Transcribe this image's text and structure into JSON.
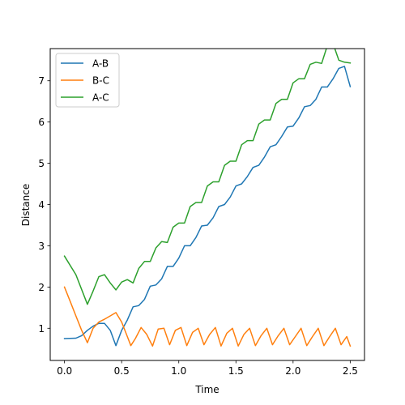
{
  "chart_data": {
    "type": "line",
    "title": "",
    "xlabel": "Time",
    "ylabel": "Distance",
    "xlim": [
      -0.125,
      2.625
    ],
    "ylim": [
      0.22,
      7.78
    ],
    "xticks": [
      0.0,
      0.5,
      1.0,
      1.5,
      2.0,
      2.5
    ],
    "xtick_labels": [
      "0.0",
      "0.5",
      "1.0",
      "1.5",
      "2.0",
      "2.5"
    ],
    "yticks": [
      1,
      2,
      3,
      4,
      5,
      6,
      7
    ],
    "ytick_labels": [
      "1",
      "2",
      "3",
      "4",
      "5",
      "6",
      "7"
    ],
    "grid": false,
    "legend": {
      "placement": "top-left",
      "entries": [
        "A-B",
        "B-C",
        "A-C"
      ]
    },
    "series": [
      {
        "name": "A-B",
        "color": "#1f77b4",
        "x": [
          0.0,
          0.1,
          0.15,
          0.2,
          0.25,
          0.3,
          0.35,
          0.4,
          0.45,
          0.5,
          0.55,
          0.6,
          0.65,
          0.7,
          0.75,
          0.8,
          0.85,
          0.9,
          0.95,
          1.0,
          1.05,
          1.1,
          1.15,
          1.2,
          1.25,
          1.3,
          1.35,
          1.4,
          1.45,
          1.5,
          1.55,
          1.6,
          1.65,
          1.7,
          1.75,
          1.8,
          1.85,
          1.9,
          1.95,
          2.0,
          2.05,
          2.1,
          2.15,
          2.2,
          2.25,
          2.3,
          2.35,
          2.4,
          2.45,
          2.5
        ],
        "y": [
          0.75,
          0.76,
          0.82,
          0.95,
          1.05,
          1.12,
          1.12,
          0.95,
          0.58,
          0.95,
          1.2,
          1.52,
          1.55,
          1.7,
          2.02,
          2.05,
          2.2,
          2.5,
          2.5,
          2.7,
          3.0,
          3.0,
          3.2,
          3.48,
          3.5,
          3.68,
          3.95,
          4.0,
          4.18,
          4.45,
          4.5,
          4.68,
          4.9,
          4.95,
          5.15,
          5.4,
          5.45,
          5.65,
          5.88,
          5.9,
          6.1,
          6.37,
          6.4,
          6.55,
          6.85,
          6.85,
          7.05,
          7.3,
          7.35,
          6.86
        ]
      },
      {
        "name": "B-C",
        "color": "#ff7f0e",
        "x": [
          0.0,
          0.05,
          0.1,
          0.15,
          0.2,
          0.25,
          0.3,
          0.35,
          0.4,
          0.45,
          0.5,
          0.55,
          0.58,
          0.62,
          0.67,
          0.72,
          0.77,
          0.82,
          0.87,
          0.92,
          0.97,
          1.02,
          1.07,
          1.12,
          1.17,
          1.22,
          1.27,
          1.32,
          1.37,
          1.42,
          1.47,
          1.52,
          1.57,
          1.62,
          1.67,
          1.72,
          1.77,
          1.82,
          1.87,
          1.92,
          1.97,
          2.02,
          2.07,
          2.12,
          2.17,
          2.22,
          2.27,
          2.32,
          2.37,
          2.42,
          2.47,
          2.5
        ],
        "y": [
          2.0,
          1.65,
          1.3,
          0.95,
          0.65,
          1.0,
          1.15,
          1.22,
          1.3,
          1.38,
          1.15,
          0.8,
          0.58,
          0.75,
          1.02,
          0.85,
          0.57,
          0.98,
          1.0,
          0.6,
          0.95,
          1.02,
          0.58,
          0.9,
          1.0,
          0.6,
          0.85,
          1.02,
          0.57,
          0.88,
          1.0,
          0.57,
          0.85,
          1.0,
          0.58,
          0.82,
          1.0,
          0.6,
          0.82,
          1.0,
          0.6,
          0.8,
          1.0,
          0.58,
          0.8,
          1.0,
          0.58,
          0.8,
          1.0,
          0.6,
          0.8,
          0.57
        ]
      },
      {
        "name": "A-C",
        "color": "#2ca02c",
        "x": [
          0.0,
          0.1,
          0.2,
          0.25,
          0.3,
          0.35,
          0.4,
          0.45,
          0.5,
          0.55,
          0.6,
          0.65,
          0.7,
          0.75,
          0.8,
          0.85,
          0.9,
          0.95,
          1.0,
          1.05,
          1.1,
          1.15,
          1.2,
          1.25,
          1.3,
          1.35,
          1.4,
          1.45,
          1.5,
          1.55,
          1.6,
          1.65,
          1.7,
          1.75,
          1.8,
          1.85,
          1.9,
          1.95,
          2.0,
          2.05,
          2.1,
          2.15,
          2.2,
          2.25,
          2.3,
          2.35,
          2.4,
          2.45,
          2.5
        ],
        "y": [
          2.75,
          2.3,
          1.58,
          1.9,
          2.25,
          2.3,
          2.1,
          1.93,
          2.12,
          2.18,
          2.1,
          2.45,
          2.62,
          2.62,
          2.95,
          3.1,
          3.08,
          3.45,
          3.55,
          3.55,
          3.95,
          4.05,
          4.05,
          4.45,
          4.55,
          4.55,
          4.95,
          5.05,
          5.05,
          5.45,
          5.55,
          5.55,
          5.95,
          6.05,
          6.05,
          6.45,
          6.55,
          6.55,
          6.95,
          7.05,
          7.05,
          7.4,
          7.45,
          7.42,
          7.85,
          7.9,
          7.5,
          7.45,
          7.43
        ]
      }
    ]
  }
}
